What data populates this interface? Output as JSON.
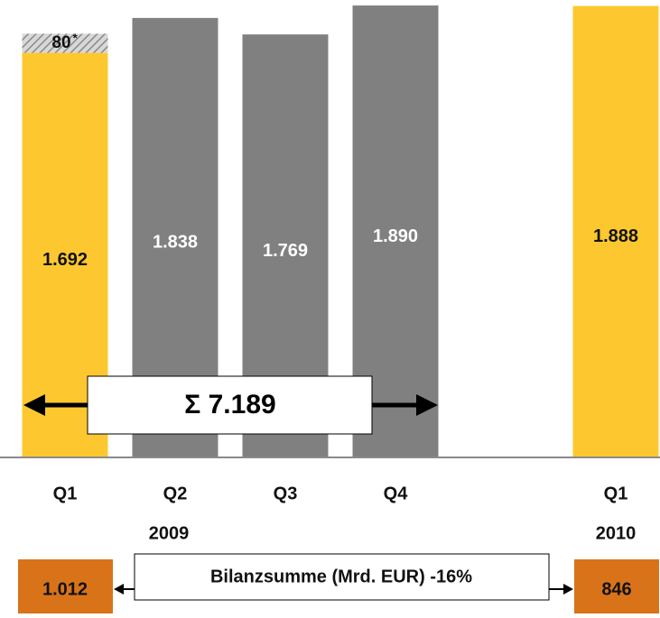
{
  "chart_data": {
    "type": "stacked_bar",
    "categories": [
      "Q1",
      "Q2",
      "Q3",
      "Q4",
      null,
      "Q1"
    ],
    "groups": [
      {
        "label": "2009",
        "from": 0,
        "to": 3
      },
      {
        "label": "2010",
        "from": 5,
        "to": 5
      }
    ],
    "series": [
      {
        "colors": [
          "#fdc82f",
          "#808080",
          "#808080",
          "#808080",
          null,
          "#fdc82f"
        ],
        "label_colors": [
          "#111111",
          "#ffffff",
          "#ffffff",
          "#ffffff",
          null,
          "#111111"
        ],
        "values": [
          1692,
          1838,
          1769,
          1890,
          null,
          1888
        ],
        "value_labels": [
          "1.692",
          "1.838",
          "1.769",
          "1.890",
          null,
          "1.888"
        ]
      },
      {
        "color": "hatched",
        "values": [
          80,
          null,
          null,
          null,
          null,
          null
        ],
        "value_labels": [
          "80",
          null,
          null,
          null,
          null,
          null
        ]
      }
    ],
    "footnote_mark": "*",
    "ylim": [
      0,
      1913
    ],
    "sum_annotation": "Σ 7.189",
    "balance": {
      "caption": "Bilanzsumme (Mrd. EUR) -16%",
      "left": "1.012",
      "right": "846",
      "color": "#d9731a"
    }
  }
}
